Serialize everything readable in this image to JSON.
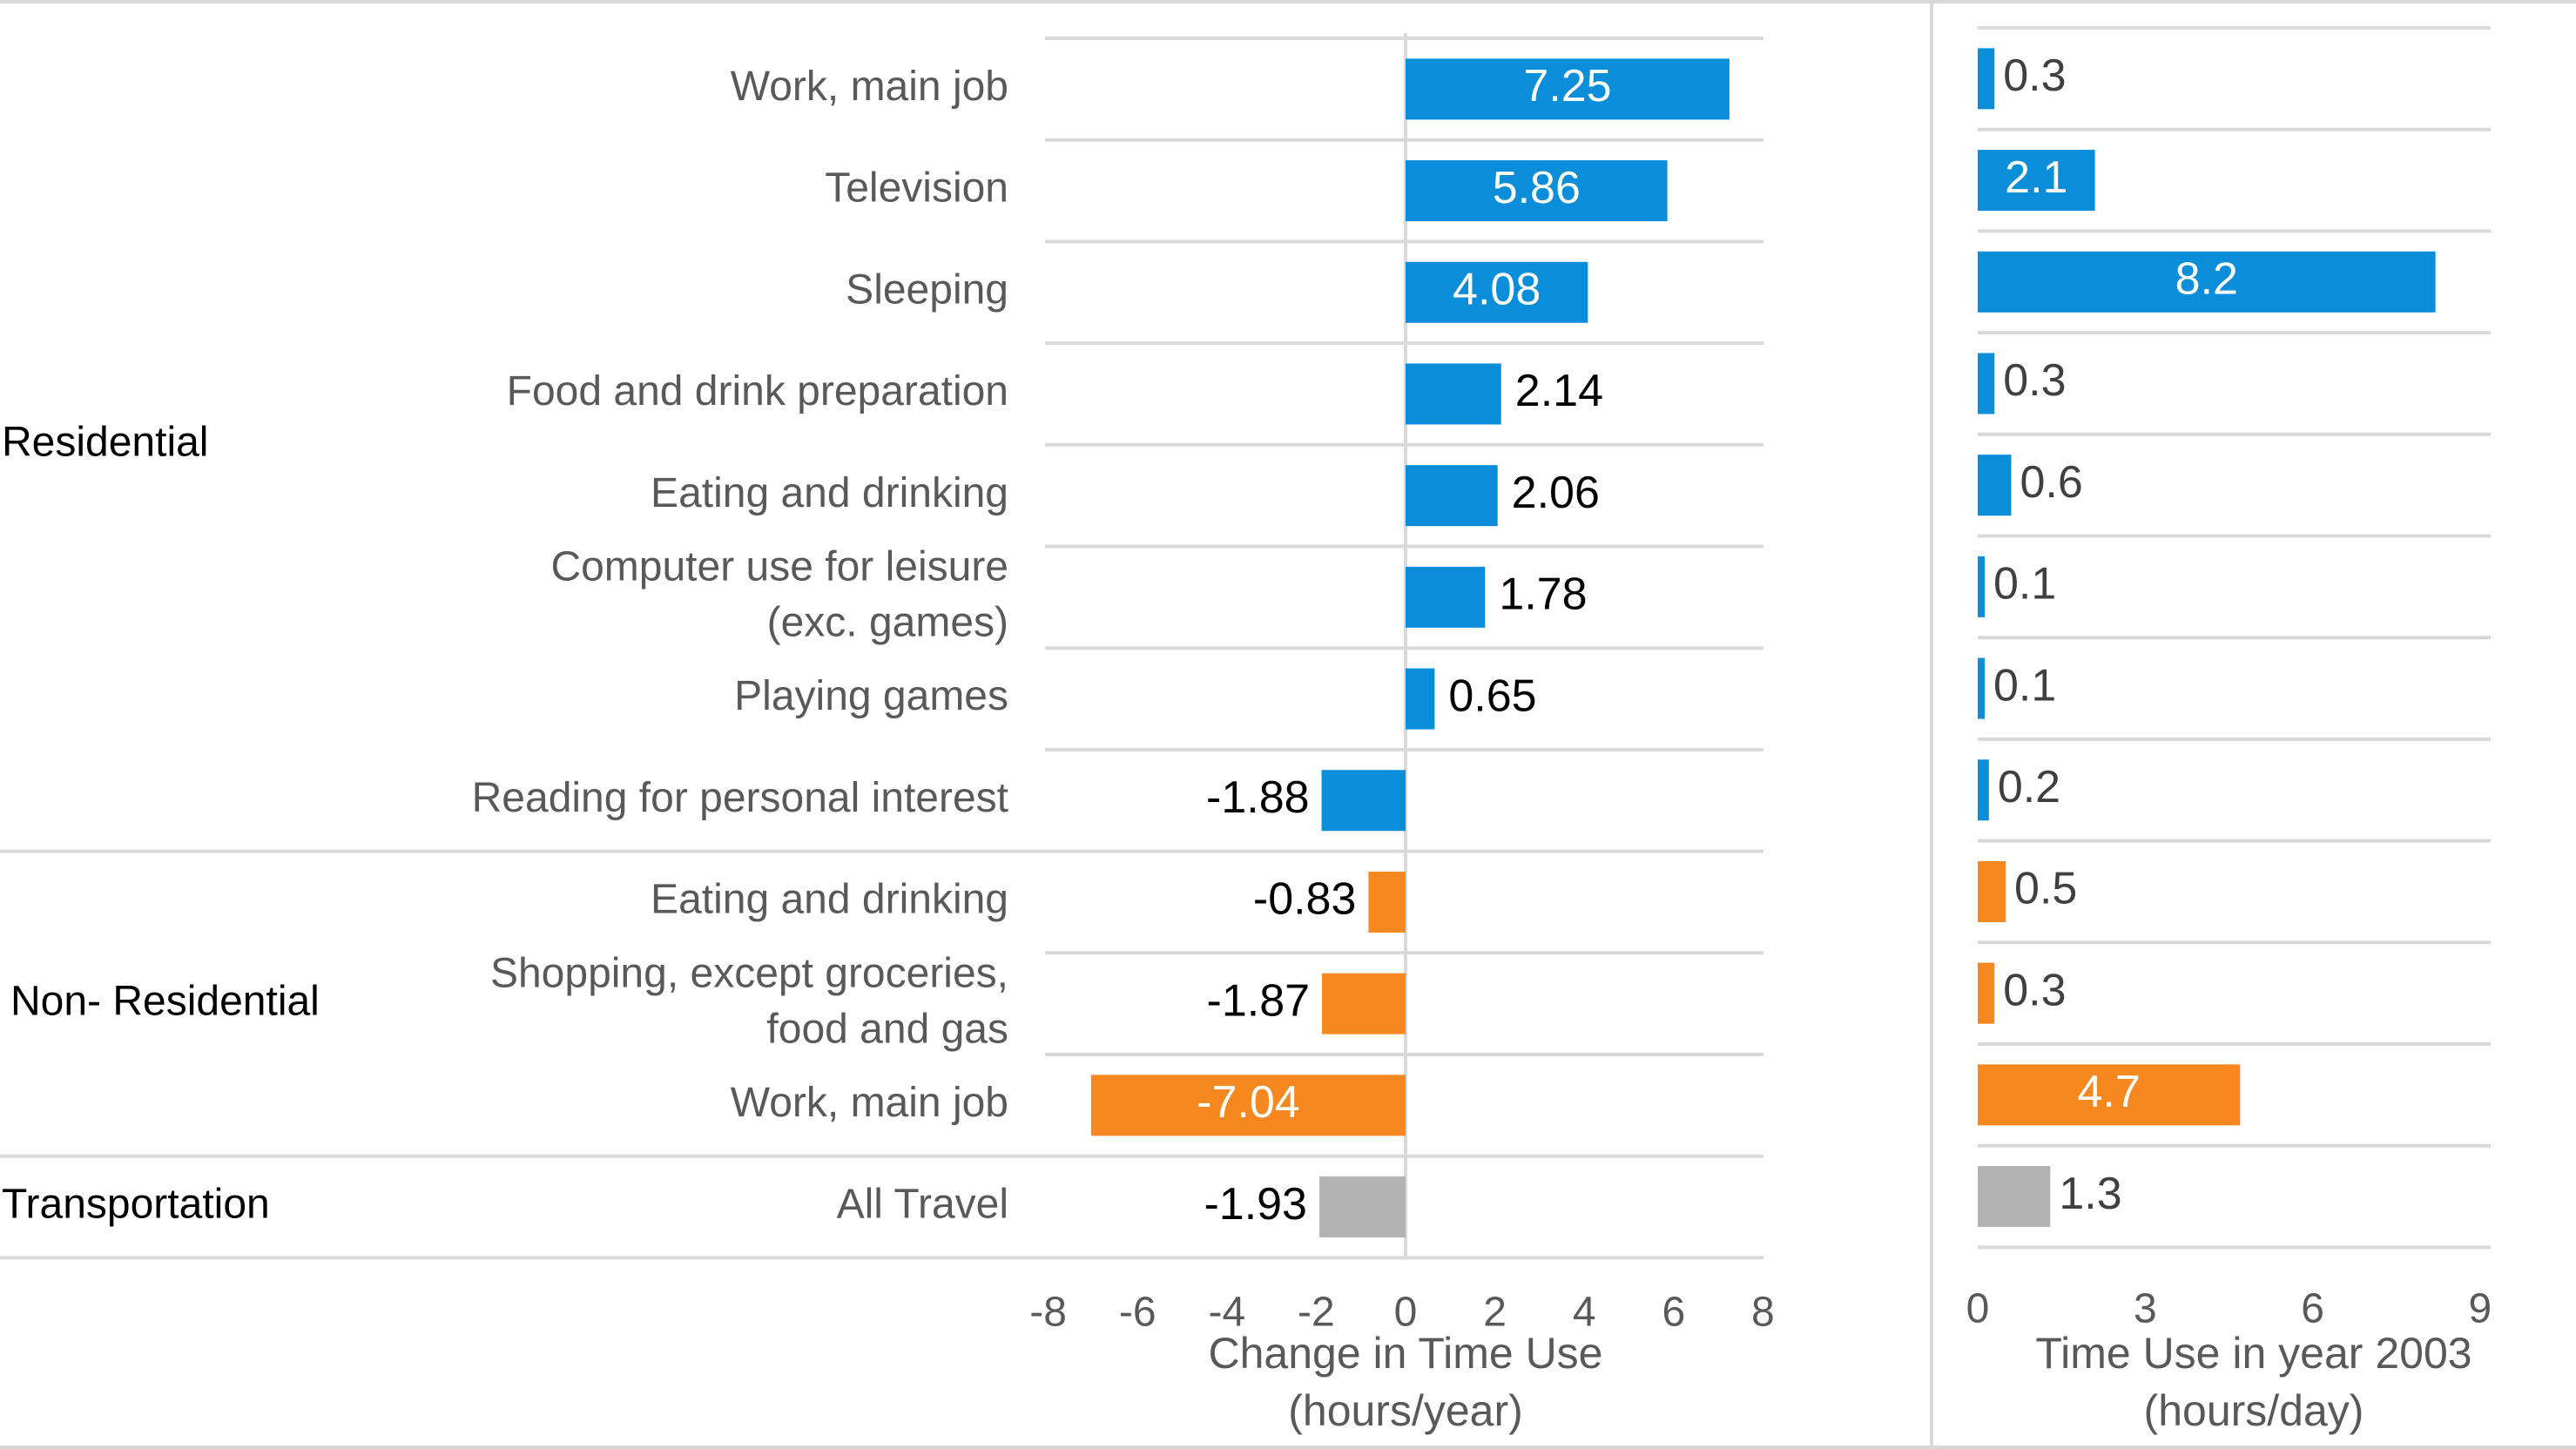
{
  "chart_data": [
    {
      "type": "bar",
      "orientation": "horizontal",
      "title": "",
      "xlabel": "Change in Time Use (hours/year)",
      "xlim": [
        -8,
        8
      ],
      "xticks": [
        "-8",
        "-6",
        "-4",
        "-2",
        "0",
        "2",
        "4",
        "6",
        "8"
      ],
      "groups": [
        {
          "name": "Residential",
          "color": "#0A8ED9"
        },
        {
          "name": "Non- Residential",
          "color": "#F7881F"
        },
        {
          "name": "Transportation",
          "color": "#B3B3B3"
        }
      ],
      "categories": [
        "Work, main job",
        "Television",
        "Sleeping",
        "Food and drink preparation",
        "Eating and drinking",
        "Computer use for leisure (exc. games)",
        "Playing games",
        "Reading for personal interest",
        "Eating and drinking",
        "Shopping, except groceries, food and gas",
        "Work, main job",
        "All Travel"
      ],
      "category_groups": [
        "Residential",
        "Residential",
        "Residential",
        "Residential",
        "Residential",
        "Residential",
        "Residential",
        "Residential",
        "Non- Residential",
        "Non- Residential",
        "Non- Residential",
        "Transportation"
      ],
      "values": [
        7.25,
        5.86,
        4.08,
        2.14,
        2.06,
        1.78,
        0.65,
        -1.88,
        -0.83,
        -1.87,
        -7.04,
        -1.93
      ],
      "value_labels": [
        "7.25",
        "5.86",
        "4.08",
        "2.14",
        "2.06",
        "1.78",
        "0.65",
        "-1.88",
        "-0.83",
        "-1.87",
        "-7.04",
        "-1.93"
      ]
    },
    {
      "type": "bar",
      "orientation": "horizontal",
      "title": "",
      "xlabel": "Time Use in year 2003 (hours/day)",
      "xlim": [
        0,
        9
      ],
      "xticks": [
        "0",
        "3",
        "6",
        "9"
      ],
      "values": [
        0.3,
        2.1,
        8.2,
        0.3,
        0.6,
        0.1,
        0.1,
        0.2,
        0.5,
        0.3,
        4.7,
        1.3
      ],
      "value_labels": [
        "0.3",
        "2.1",
        "8.2",
        "0.3",
        "0.6",
        "0.1",
        "0.1",
        "0.2",
        "0.5",
        "0.3",
        "4.7",
        "1.3"
      ]
    }
  ],
  "axis_titles": {
    "left": {
      "line1": "Change in Time Use",
      "line2": "(hours/year)"
    },
    "right": {
      "line1": "Time Use in year 2003",
      "line2": "(hours/day)"
    }
  },
  "category_lines": [
    [
      "Work, main job"
    ],
    [
      "Television"
    ],
    [
      "Sleeping"
    ],
    [
      "Food and drink preparation"
    ],
    [
      "Eating and drinking"
    ],
    [
      "Computer use for leisure",
      "(exc. games)"
    ],
    [
      "Playing games"
    ],
    [
      "Reading for personal interest"
    ],
    [
      "Eating and drinking"
    ],
    [
      "Shopping, except groceries,",
      "food and gas"
    ],
    [
      "Work, main job"
    ],
    [
      "All Travel"
    ]
  ]
}
